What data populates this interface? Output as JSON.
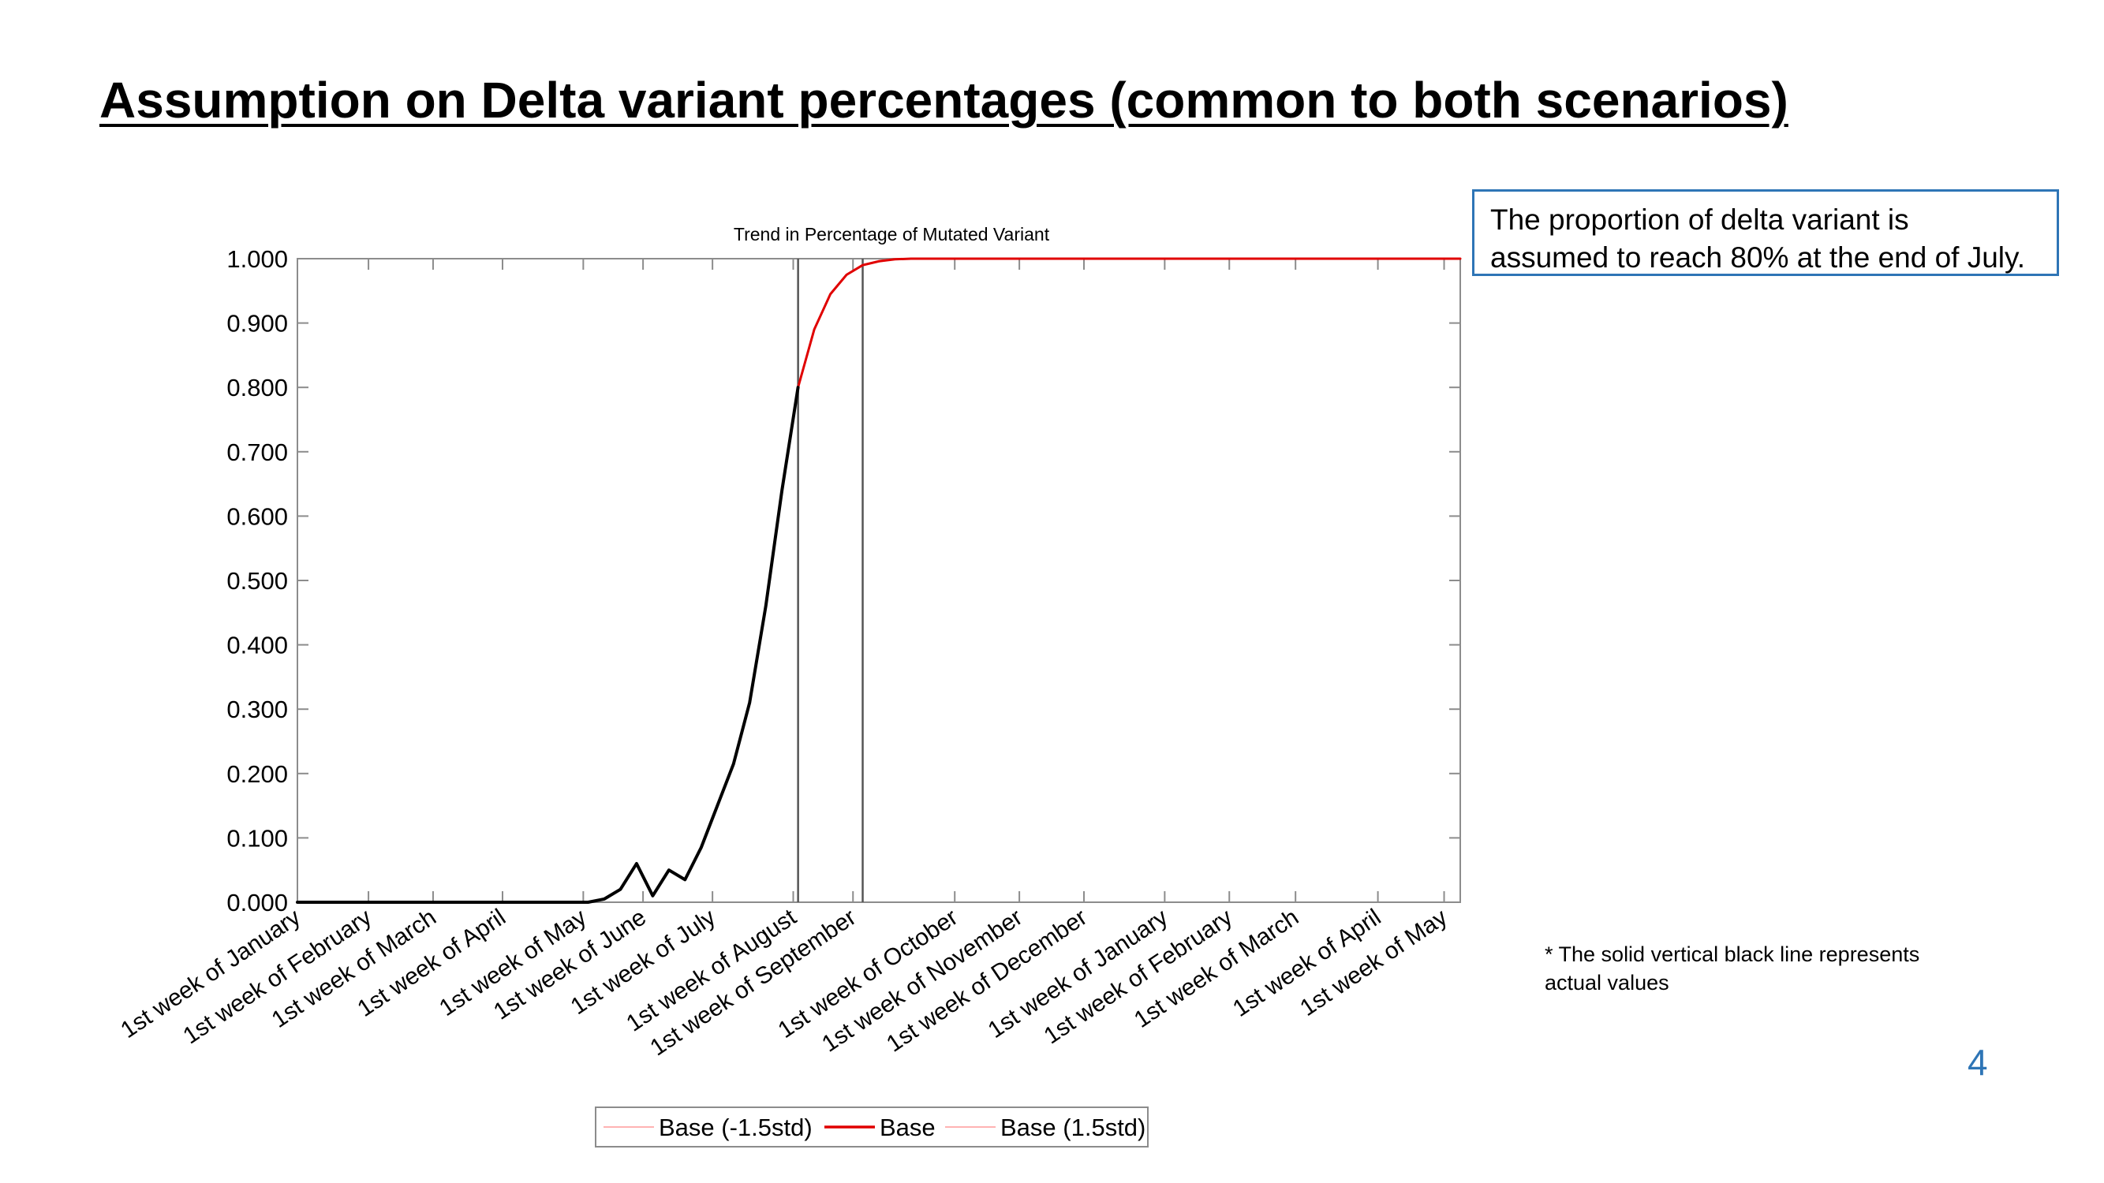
{
  "slide": {
    "title": "Assumption on Delta variant percentages (common to both scenarios)",
    "callout_lines": [
      "The proportion of delta variant is",
      "assumed to reach 80% at the end of July."
    ],
    "footnote_lines": [
      "* The solid vertical black line represents",
      "actual values"
    ],
    "page_number": "4",
    "accent_color": "#2e75b6"
  },
  "chart_data": {
    "type": "line",
    "title": "Trend in Percentage of Mutated Variant",
    "xlabel": "",
    "ylabel": "",
    "x_unit": "week index (0 = 1st week of January)",
    "xlim": [
      0,
      72
    ],
    "ylim": [
      0,
      1
    ],
    "y_ticks": [
      0,
      0.1,
      0.2,
      0.3,
      0.4,
      0.5,
      0.6,
      0.7,
      0.8,
      0.9,
      1.0
    ],
    "y_tick_labels": [
      "0.000",
      "0.100",
      "0.200",
      "0.300",
      "0.400",
      "0.500",
      "0.600",
      "0.700",
      "0.800",
      "0.900",
      "1.000"
    ],
    "x_ticks": [
      {
        "x": 0,
        "label": "1st week of January"
      },
      {
        "x": 4.4,
        "label": "1st week of February"
      },
      {
        "x": 8.4,
        "label": "1st week of March"
      },
      {
        "x": 12.7,
        "label": "1st week of April"
      },
      {
        "x": 17.7,
        "label": "1st week of May"
      },
      {
        "x": 21.4,
        "label": "1st week of June"
      },
      {
        "x": 25.7,
        "label": "1st week of July"
      },
      {
        "x": 30.7,
        "label": "1st week of August"
      },
      {
        "x": 34.4,
        "label": "1st week of September"
      },
      {
        "x": 40.7,
        "label": "1st week of October"
      },
      {
        "x": 44.7,
        "label": "1st week of November"
      },
      {
        "x": 48.7,
        "label": "1st week of December"
      },
      {
        "x": 53.7,
        "label": "1st week of January"
      },
      {
        "x": 57.7,
        "label": "1st week of February"
      },
      {
        "x": 61.8,
        "label": "1st week of March"
      },
      {
        "x": 66.9,
        "label": "1st week of April"
      },
      {
        "x": 71.0,
        "label": "1st week of May"
      }
    ],
    "vertical_lines": [
      31,
      35
    ],
    "grid": false,
    "legend": {
      "placement": "bottom",
      "entries": [
        "Base (-1.5std)",
        "Base",
        "Base (1.5std)"
      ]
    },
    "series": [
      {
        "name": "Base",
        "segment": "actual",
        "color": "#000000",
        "points": [
          [
            0,
            0
          ],
          [
            18,
            0
          ],
          [
            19,
            0.005
          ],
          [
            20,
            0.02
          ],
          [
            21,
            0.06
          ],
          [
            22,
            0.01
          ],
          [
            23,
            0.05
          ],
          [
            24,
            0.035
          ],
          [
            25,
            0.085
          ],
          [
            26,
            0.15
          ],
          [
            27,
            0.215
          ],
          [
            28,
            0.31
          ],
          [
            29,
            0.46
          ],
          [
            30,
            0.64
          ],
          [
            31,
            0.8
          ]
        ]
      },
      {
        "name": "Base",
        "segment": "projection",
        "color": "#e00000",
        "points": [
          [
            31,
            0.8
          ],
          [
            32,
            0.89
          ],
          [
            33,
            0.945
          ],
          [
            34,
            0.975
          ],
          [
            35,
            0.99
          ],
          [
            36,
            0.996
          ],
          [
            37,
            0.999
          ],
          [
            38,
            1.0
          ],
          [
            72,
            1.0
          ]
        ]
      },
      {
        "name": "Base (-1.5std)",
        "segment": "projection",
        "color": "#ff9a9a",
        "points": [
          [
            31,
            0.8
          ],
          [
            32,
            0.889
          ],
          [
            33,
            0.944
          ],
          [
            34,
            0.974
          ],
          [
            35,
            0.989
          ],
          [
            36,
            0.995
          ],
          [
            37,
            0.999
          ],
          [
            38,
            1.0
          ],
          [
            72,
            1.0
          ]
        ]
      },
      {
        "name": "Base (1.5std)",
        "segment": "projection",
        "color": "#ff9a9a",
        "points": [
          [
            31,
            0.8
          ],
          [
            32,
            0.891
          ],
          [
            33,
            0.946
          ],
          [
            34,
            0.976
          ],
          [
            35,
            0.991
          ],
          [
            36,
            0.997
          ],
          [
            37,
            1.0
          ],
          [
            38,
            1.0
          ],
          [
            72,
            1.0
          ]
        ]
      }
    ]
  }
}
